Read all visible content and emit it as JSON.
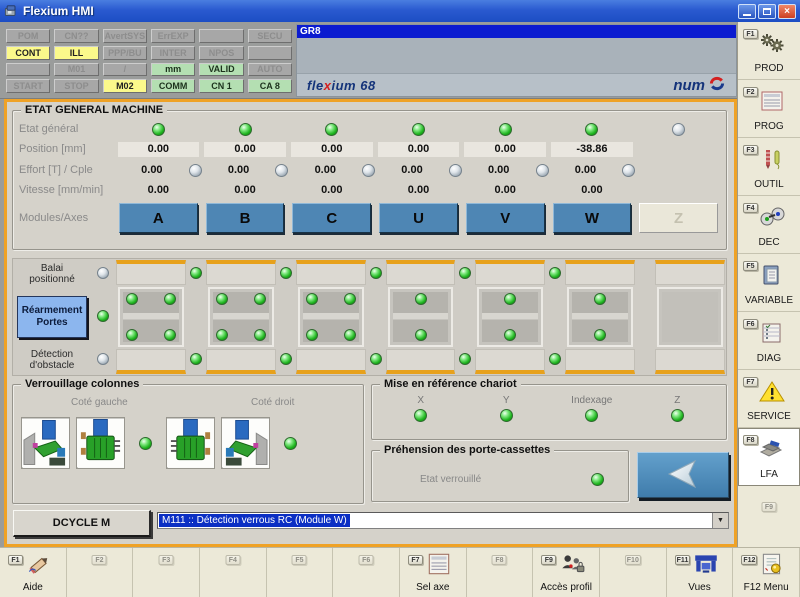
{
  "colors": {
    "accent_orange": "#EFA226",
    "module_blue": "#4E86B4",
    "selection_blue": "#0B2FC4",
    "led_green": "#1EB41E",
    "led_gray": "#9AA7B2",
    "lamp_yellow": "#FBF98B",
    "lamp_green": "#B4DFB2",
    "titlebar_blue": "#2A5AD0"
  },
  "window": {
    "title": "Flexium HMI"
  },
  "status_grid": {
    "rows": [
      [
        {
          "label": "POM",
          "state": "off"
        },
        {
          "label": "CN??",
          "state": "off"
        },
        {
          "label": "AvertSYS",
          "state": "off"
        },
        {
          "label": "ErrEXP",
          "state": "off"
        },
        {
          "label": "",
          "state": "off"
        },
        {
          "label": "SECU",
          "state": "off"
        }
      ],
      [
        {
          "label": "CONT",
          "state": "yellow"
        },
        {
          "label": "ILL",
          "state": "yellow"
        },
        {
          "label": "PPP/BU",
          "state": "off"
        },
        {
          "label": "INTER",
          "state": "off"
        },
        {
          "label": "NPOS",
          "state": "off"
        },
        {
          "label": "",
          "state": "off"
        }
      ],
      [
        {
          "label": "",
          "state": "off"
        },
        {
          "label": "M01",
          "state": "off"
        },
        {
          "label": "/",
          "state": "off"
        },
        {
          "label": "mm",
          "state": "green"
        },
        {
          "label": "VALID",
          "state": "green"
        },
        {
          "label": "AUTO",
          "state": "off"
        }
      ],
      [
        {
          "label": "START",
          "state": "off"
        },
        {
          "label": "STOP",
          "state": "off"
        },
        {
          "label": "M02",
          "state": "yellow"
        },
        {
          "label": "COMM",
          "state": "green"
        },
        {
          "label": "CN 1",
          "state": "green"
        },
        {
          "label": "CA 8",
          "state": "green"
        }
      ]
    ]
  },
  "gr8_panel": {
    "header": "GR8",
    "brand_left": "flexium 68",
    "brand_right": "num"
  },
  "sidebar": {
    "items": [
      {
        "key": "F1",
        "label": "PROD",
        "icon": "gears-icon"
      },
      {
        "key": "F2",
        "label": "PROG",
        "icon": "program-doc-icon"
      },
      {
        "key": "F3",
        "label": "OUTIL",
        "icon": "tools-icon"
      },
      {
        "key": "F4",
        "label": "DEC",
        "icon": "gauges-icon"
      },
      {
        "key": "F5",
        "label": "VARIABLE",
        "icon": "clipboard-icon"
      },
      {
        "key": "F6",
        "label": "DIAG",
        "icon": "diag-list-icon"
      },
      {
        "key": "F7",
        "label": "SERVICE",
        "icon": "warning-icon"
      },
      {
        "key": "F8",
        "label": "LFA",
        "icon": "lfa-icon",
        "selected": true
      }
    ],
    "spare_key": "F9"
  },
  "machine_state": {
    "title": "ETAT GENERAL MACHINE",
    "axes": [
      "A",
      "B",
      "C",
      "U",
      "V",
      "W",
      "Z"
    ],
    "rows": {
      "etat_general": {
        "label": "Etat général",
        "leds": [
          "green",
          "green",
          "green",
          "green",
          "green",
          "green",
          "gray"
        ]
      },
      "position": {
        "label": "Position [mm]",
        "values": [
          "0.00",
          "0.00",
          "0.00",
          "0.00",
          "0.00",
          "-38.86",
          ""
        ]
      },
      "effort": {
        "label": "Effort [T] / Cple",
        "values": [
          "0.00",
          "0.00",
          "0.00",
          "0.00",
          "0.00",
          "0.00",
          ""
        ],
        "leds": [
          "gray",
          "gray",
          "gray",
          "gray",
          "gray",
          "gray",
          ""
        ]
      },
      "vitesse": {
        "label": "Vitesse [mm/min]",
        "values": [
          "0.00",
          "0.00",
          "0.00",
          "0.00",
          "0.00",
          "0.00",
          ""
        ]
      },
      "modules": {
        "label": "Modules/Axes",
        "buttons": [
          {
            "label": "A",
            "enabled": true
          },
          {
            "label": "B",
            "enabled": true
          },
          {
            "label": "C",
            "enabled": true
          },
          {
            "label": "U",
            "enabled": true
          },
          {
            "label": "V",
            "enabled": true
          },
          {
            "label": "W",
            "enabled": true
          },
          {
            "label": "Z",
            "enabled": false
          }
        ]
      }
    }
  },
  "doors_panel": {
    "balai_label": "Balai positionné",
    "rearm_button": "Réarmement Portes",
    "obstacle_label": "Détection d'obstacle",
    "left_leds": [
      "gray",
      "green",
      "gray"
    ],
    "modules": [
      {
        "axis": "A",
        "led_layout": "corners",
        "led_color": "green"
      },
      {
        "axis": "B",
        "led_layout": "corners",
        "led_color": "green"
      },
      {
        "axis": "C",
        "led_layout": "corners",
        "led_color": "green"
      },
      {
        "axis": "U",
        "led_layout": "center",
        "led_color": "green"
      },
      {
        "axis": "V",
        "led_layout": "center",
        "led_color": "green"
      },
      {
        "axis": "W",
        "led_layout": "center",
        "led_color": "green"
      },
      {
        "axis": "Z",
        "led_layout": "none",
        "led_color": ""
      }
    ],
    "separator_leds": [
      "green",
      "green",
      "green",
      "green",
      "green",
      "none"
    ]
  },
  "verrouillage": {
    "title": "Verrouillage colonnes",
    "left_label": "Coté gauche",
    "right_label": "Coté droit",
    "left_led": "green",
    "right_led": "green",
    "images": [
      {
        "icon": "column-outer-view-icon",
        "mirrored": false
      },
      {
        "icon": "column-clamp-icon",
        "mirrored": false
      },
      {
        "icon": "column-clamp-icon",
        "mirrored": true
      },
      {
        "icon": "column-outer-view-icon",
        "mirrored": true
      }
    ]
  },
  "reference_chariot": {
    "title": "Mise en référence chariot",
    "items": [
      {
        "label": "X",
        "led": "green"
      },
      {
        "label": "Y",
        "led": "green"
      },
      {
        "label": "Indexage",
        "led": "green"
      },
      {
        "label": "Z",
        "led": "green"
      }
    ]
  },
  "prehension": {
    "title": "Préhension des porte-cassettes",
    "state_label": "Etat verrouillé",
    "led": "green"
  },
  "cycle_bar": {
    "button_label": "DCYCLE M",
    "message_value": "M111 :: Détection verrous RC (Module W)"
  },
  "function_bar": {
    "cells": [
      {
        "key": "F1",
        "label": "Aide",
        "icon": "help-pencil-icon"
      },
      {
        "key": "F2",
        "label": "",
        "icon": ""
      },
      {
        "key": "F3",
        "label": "",
        "icon": ""
      },
      {
        "key": "F4",
        "label": "",
        "icon": ""
      },
      {
        "key": "F5",
        "label": "",
        "icon": ""
      },
      {
        "key": "F6",
        "label": "",
        "icon": ""
      },
      {
        "key": "F7",
        "label": "Sel axe",
        "icon": "axis-list-icon"
      },
      {
        "key": "F8",
        "label": "",
        "icon": ""
      },
      {
        "key": "F9",
        "label": "Accès profil",
        "icon": "profile-access-icon"
      },
      {
        "key": "F10",
        "label": "",
        "icon": ""
      },
      {
        "key": "F11",
        "label": "Vues",
        "icon": "views-machine-icon"
      },
      {
        "key": "F12",
        "label": "F12 Menu",
        "icon": "menu-doc-icon"
      }
    ]
  }
}
